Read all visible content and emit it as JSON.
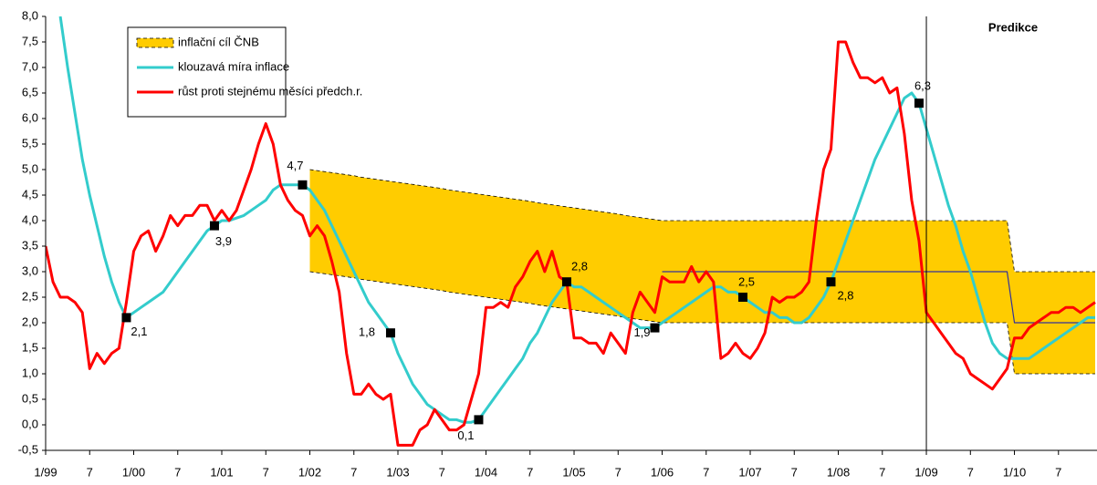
{
  "chart_data": {
    "type": "line",
    "categories": [
      "1/99",
      null,
      null,
      null,
      null,
      null,
      "7",
      null,
      null,
      null,
      null,
      null,
      "1/00",
      null,
      null,
      null,
      null,
      null,
      "7",
      null,
      null,
      null,
      null,
      null,
      "1/01",
      null,
      null,
      null,
      null,
      null,
      "7",
      null,
      null,
      null,
      null,
      null,
      "1/02",
      null,
      null,
      null,
      null,
      null,
      "7",
      null,
      null,
      null,
      null,
      null,
      "1/03",
      null,
      null,
      null,
      null,
      null,
      "7",
      null,
      null,
      null,
      null,
      null,
      "1/04",
      null,
      null,
      null,
      null,
      null,
      "7",
      null,
      null,
      null,
      null,
      null,
      "1/05",
      null,
      null,
      null,
      null,
      null,
      "7",
      null,
      null,
      null,
      null,
      null,
      "1/06",
      null,
      null,
      null,
      null,
      null,
      "7",
      null,
      null,
      null,
      null,
      null,
      "1/07",
      null,
      null,
      null,
      null,
      null,
      "7",
      null,
      null,
      null,
      null,
      null,
      "1/08",
      null,
      null,
      null,
      null,
      null,
      "7",
      null,
      null,
      null,
      null,
      null,
      "1/09",
      null,
      null,
      null,
      null,
      null,
      "7",
      null,
      null,
      null,
      null,
      null,
      "1/10",
      null,
      null,
      null,
      null,
      null,
      "7",
      null,
      null,
      null,
      null,
      null
    ],
    "ylim": [
      -0.5,
      8
    ],
    "yticks": [
      {
        "value": -0.5,
        "label": "-0,5"
      },
      {
        "value": 0,
        "label": "0,0"
      },
      {
        "value": 0.5,
        "label": "0,5"
      },
      {
        "value": 1,
        "label": "1,0"
      },
      {
        "value": 1.5,
        "label": "1,5"
      },
      {
        "value": 2,
        "label": "2,0"
      },
      {
        "value": 2.5,
        "label": "2,5"
      },
      {
        "value": 3,
        "label": "3,0"
      },
      {
        "value": 3.5,
        "label": "3,5"
      },
      {
        "value": 4,
        "label": "4,0"
      },
      {
        "value": 4.5,
        "label": "4,5"
      },
      {
        "value": 5,
        "label": "5,0"
      },
      {
        "value": 5.5,
        "label": "5,5"
      },
      {
        "value": 6,
        "label": "6,0"
      },
      {
        "value": 6.5,
        "label": "6,5"
      },
      {
        "value": 7,
        "label": "7,0"
      },
      {
        "value": 7.5,
        "label": "7,5"
      },
      {
        "value": 8,
        "label": "8,0"
      }
    ],
    "grid": false,
    "legend": "top-left",
    "annotations": [
      {
        "text": "Predikce",
        "at": "1/09"
      }
    ],
    "series": [
      {
        "name": "inflační cíl ČNB",
        "type": "band",
        "color": "#ffcc00",
        "values": [
          null,
          null,
          null,
          null,
          null,
          null,
          null,
          null,
          null,
          null,
          null,
          null,
          null,
          null,
          null,
          null,
          null,
          null,
          null,
          null,
          null,
          null,
          null,
          null,
          null,
          null,
          null,
          null,
          null,
          null,
          null,
          null,
          null,
          null,
          null,
          null,
          5.0,
          4.98,
          4.96,
          4.94,
          4.92,
          4.9,
          4.88,
          4.85,
          4.83,
          4.81,
          4.79,
          4.77,
          4.75,
          4.73,
          4.71,
          4.69,
          4.67,
          4.65,
          4.63,
          4.6,
          4.58,
          4.56,
          4.54,
          4.52,
          4.5,
          4.48,
          4.46,
          4.44,
          4.42,
          4.4,
          4.38,
          4.35,
          4.33,
          4.31,
          4.29,
          4.27,
          4.25,
          4.23,
          4.21,
          4.19,
          4.17,
          4.15,
          4.13,
          4.1,
          4.08,
          4.06,
          4.04,
          4.02,
          4,
          4,
          4,
          4,
          4,
          4,
          4,
          4,
          4,
          4,
          4,
          4,
          4,
          4,
          4,
          4,
          4,
          4,
          4,
          4,
          4,
          4,
          4,
          4,
          4,
          4,
          4,
          4,
          4,
          4,
          4,
          4,
          4,
          4,
          4,
          4,
          4,
          4,
          4,
          4,
          4,
          4,
          4,
          4,
          4,
          4,
          4,
          4,
          3,
          3,
          3,
          3,
          3,
          3,
          3,
          3,
          3,
          3,
          3,
          3
        ],
        "lower": [
          null,
          null,
          null,
          null,
          null,
          null,
          null,
          null,
          null,
          null,
          null,
          null,
          null,
          null,
          null,
          null,
          null,
          null,
          null,
          null,
          null,
          null,
          null,
          null,
          null,
          null,
          null,
          null,
          null,
          null,
          null,
          null,
          null,
          null,
          null,
          null,
          3.0,
          2.98,
          2.96,
          2.94,
          2.92,
          2.9,
          2.88,
          2.85,
          2.83,
          2.81,
          2.79,
          2.77,
          2.75,
          2.73,
          2.71,
          2.69,
          2.67,
          2.65,
          2.63,
          2.6,
          2.58,
          2.56,
          2.54,
          2.52,
          2.5,
          2.48,
          2.46,
          2.44,
          2.42,
          2.4,
          2.38,
          2.35,
          2.33,
          2.31,
          2.29,
          2.27,
          2.25,
          2.23,
          2.21,
          2.19,
          2.17,
          2.15,
          2.13,
          2.1,
          2.08,
          2.06,
          2.04,
          2.02,
          2,
          2,
          2,
          2,
          2,
          2,
          2,
          2,
          2,
          2,
          2,
          2,
          2,
          2,
          2,
          2,
          2,
          2,
          2,
          2,
          2,
          2,
          2,
          2,
          2,
          2,
          2,
          2,
          2,
          2,
          2,
          2,
          2,
          2,
          2,
          2,
          2,
          2,
          2,
          2,
          2,
          2,
          2,
          2,
          2,
          2,
          2,
          2,
          1,
          1,
          1,
          1,
          1,
          1,
          1,
          1,
          1,
          1,
          1,
          1
        ]
      },
      {
        "name": "klouzavá míra inflace",
        "color": "#33cccc",
        "values": [
          null,
          null,
          8.0,
          7.0,
          6.1,
          5.2,
          4.5,
          3.9,
          3.3,
          2.8,
          2.4,
          2.1,
          2.2,
          2.3,
          2.4,
          2.5,
          2.6,
          2.8,
          3.0,
          3.2,
          3.4,
          3.6,
          3.8,
          3.9,
          4.0,
          4.0,
          4.05,
          4.1,
          4.2,
          4.3,
          4.4,
          4.6,
          4.7,
          4.7,
          4.7,
          4.7,
          4.6,
          4.4,
          4.2,
          3.9,
          3.6,
          3.3,
          3.0,
          2.7,
          2.4,
          2.2,
          2.0,
          1.8,
          1.4,
          1.1,
          0.8,
          0.6,
          0.4,
          0.3,
          0.2,
          0.1,
          0.1,
          0.05,
          0.05,
          0.1,
          0.3,
          0.5,
          0.7,
          0.9,
          1.1,
          1.3,
          1.6,
          1.8,
          2.1,
          2.4,
          2.6,
          2.8,
          2.7,
          2.7,
          2.6,
          2.5,
          2.4,
          2.3,
          2.2,
          2.1,
          2.0,
          1.9,
          1.9,
          1.9,
          2.0,
          2.1,
          2.2,
          2.3,
          2.4,
          2.5,
          2.6,
          2.7,
          2.7,
          2.6,
          2.6,
          2.5,
          2.4,
          2.3,
          2.2,
          2.2,
          2.1,
          2.1,
          2.0,
          2.0,
          2.1,
          2.3,
          2.5,
          2.8,
          3.2,
          3.6,
          4.0,
          4.4,
          4.8,
          5.2,
          5.5,
          5.8,
          6.1,
          6.4,
          6.5,
          6.3,
          5.8,
          5.3,
          4.8,
          4.3,
          3.9,
          3.4,
          3.0,
          2.5,
          2.0,
          1.6,
          1.4,
          1.3,
          1.3,
          1.3,
          1.3,
          1.4,
          1.5,
          1.6,
          1.7,
          1.8,
          1.9,
          2.0,
          2.1,
          2.1
        ]
      },
      {
        "name": "růst proti stejnému měsíci předch.r.",
        "color": "#ff0000",
        "values": [
          3.5,
          2.8,
          2.5,
          2.5,
          2.4,
          2.2,
          1.1,
          1.4,
          1.2,
          1.4,
          1.5,
          2.4,
          3.4,
          3.7,
          3.8,
          3.4,
          3.7,
          4.1,
          3.9,
          4.1,
          4.1,
          4.3,
          4.3,
          4.0,
          4.2,
          4.0,
          4.2,
          4.6,
          5.0,
          5.5,
          5.9,
          5.5,
          4.7,
          4.4,
          4.2,
          4.1,
          3.7,
          3.9,
          3.7,
          3.2,
          2.6,
          1.4,
          0.6,
          0.6,
          0.8,
          0.6,
          0.5,
          0.6,
          -0.4,
          -0.4,
          -0.4,
          -0.1,
          0.0,
          0.3,
          0.1,
          -0.1,
          -0.1,
          0.0,
          0.5,
          1.0,
          2.3,
          2.3,
          2.4,
          2.3,
          2.7,
          2.9,
          3.2,
          3.4,
          3.0,
          3.4,
          2.9,
          2.8,
          1.7,
          1.7,
          1.6,
          1.6,
          1.4,
          1.8,
          1.6,
          1.4,
          2.2,
          2.6,
          2.4,
          2.2,
          2.9,
          2.8,
          2.8,
          2.8,
          3.1,
          2.8,
          3.0,
          2.8,
          1.3,
          1.4,
          1.6,
          1.4,
          1.3,
          1.5,
          1.8,
          2.5,
          2.4,
          2.5,
          2.5,
          2.6,
          2.8,
          4.0,
          5.0,
          5.4,
          7.5,
          7.5,
          7.1,
          6.8,
          6.8,
          6.7,
          6.8,
          6.5,
          6.6,
          5.7,
          4.4,
          3.6,
          2.2,
          2.0,
          1.8,
          1.6,
          1.4,
          1.3,
          1.0,
          0.9,
          0.8,
          0.7,
          0.9,
          1.1,
          1.7,
          1.7,
          1.9,
          2.0,
          2.1,
          2.2,
          2.2,
          2.3,
          2.3,
          2.2,
          2.3,
          2.4
        ]
      },
      {
        "type": "target",
        "color": "#333399",
        "values": [
          null,
          null,
          null,
          null,
          null,
          null,
          null,
          null,
          null,
          null,
          null,
          null,
          null,
          null,
          null,
          null,
          null,
          null,
          null,
          null,
          null,
          null,
          null,
          null,
          null,
          null,
          null,
          null,
          null,
          null,
          null,
          null,
          null,
          null,
          null,
          null,
          null,
          null,
          null,
          null,
          null,
          null,
          null,
          null,
          null,
          null,
          null,
          null,
          null,
          null,
          null,
          null,
          null,
          null,
          null,
          null,
          null,
          null,
          null,
          null,
          null,
          null,
          null,
          null,
          null,
          null,
          null,
          null,
          null,
          null,
          null,
          null,
          null,
          null,
          null,
          null,
          null,
          null,
          null,
          null,
          null,
          null,
          null,
          null,
          3,
          3,
          3,
          3,
          3,
          3,
          3,
          3,
          3,
          3,
          3,
          3,
          3,
          3,
          3,
          3,
          3,
          3,
          3,
          3,
          3,
          3,
          3,
          3,
          3,
          3,
          3,
          3,
          3,
          3,
          3,
          3,
          3,
          3,
          3,
          3,
          3,
          3,
          3,
          3,
          3,
          3,
          3,
          3,
          3,
          3,
          3,
          3,
          2,
          2,
          2,
          2,
          2,
          2,
          2,
          2,
          2,
          2,
          2,
          2
        ]
      },
      {
        "type": "markers",
        "color": "#000000",
        "values": [
          null,
          null,
          null,
          null,
          null,
          null,
          null,
          null,
          null,
          null,
          null,
          2.1,
          null,
          null,
          null,
          null,
          null,
          null,
          null,
          null,
          null,
          null,
          null,
          3.9,
          null,
          null,
          null,
          null,
          null,
          null,
          null,
          null,
          null,
          null,
          null,
          4.7,
          null,
          null,
          null,
          null,
          null,
          null,
          null,
          null,
          null,
          null,
          null,
          1.8,
          null,
          null,
          null,
          null,
          null,
          null,
          null,
          null,
          null,
          null,
          null,
          0.1,
          null,
          null,
          null,
          null,
          null,
          null,
          null,
          null,
          null,
          null,
          null,
          2.8,
          null,
          null,
          null,
          null,
          null,
          null,
          null,
          null,
          null,
          null,
          null,
          1.9,
          null,
          null,
          null,
          null,
          null,
          null,
          null,
          null,
          null,
          null,
          null,
          2.5,
          null,
          null,
          null,
          null,
          null,
          null,
          null,
          null,
          null,
          null,
          null,
          2.8,
          null,
          null,
          null,
          null,
          null,
          null,
          null,
          null,
          null,
          null,
          null,
          6.3,
          null,
          null,
          null,
          null,
          null,
          null,
          null,
          null,
          null,
          null,
          null,
          null,
          null,
          null,
          null,
          null,
          null,
          null,
          null,
          null,
          null,
          null,
          null,
          null
        ],
        "value_labels": [
          null,
          null,
          null,
          null,
          null,
          null,
          null,
          null,
          null,
          null,
          null,
          "2,1",
          null,
          null,
          null,
          null,
          null,
          null,
          null,
          null,
          null,
          null,
          null,
          "3,9",
          null,
          null,
          null,
          null,
          null,
          null,
          null,
          null,
          null,
          null,
          null,
          "4,7",
          null,
          null,
          null,
          null,
          null,
          null,
          null,
          null,
          null,
          null,
          null,
          "1,8",
          null,
          null,
          null,
          null,
          null,
          null,
          null,
          null,
          null,
          null,
          null,
          "0,1",
          null,
          null,
          null,
          null,
          null,
          null,
          null,
          null,
          null,
          null,
          null,
          "2,8",
          null,
          null,
          null,
          null,
          null,
          null,
          null,
          null,
          null,
          null,
          null,
          "1,9",
          null,
          null,
          null,
          null,
          null,
          null,
          null,
          null,
          null,
          null,
          null,
          "2,5",
          null,
          null,
          null,
          null,
          null,
          null,
          null,
          null,
          null,
          null,
          null,
          "2,8",
          null,
          null,
          null,
          null,
          null,
          null,
          null,
          null,
          null,
          null,
          null,
          "6,3",
          null,
          null,
          null,
          null,
          null,
          null,
          null,
          null,
          null,
          null,
          null,
          null,
          null,
          null,
          null,
          null,
          null,
          null,
          null,
          null,
          null,
          null,
          null,
          null
        ]
      }
    ]
  }
}
